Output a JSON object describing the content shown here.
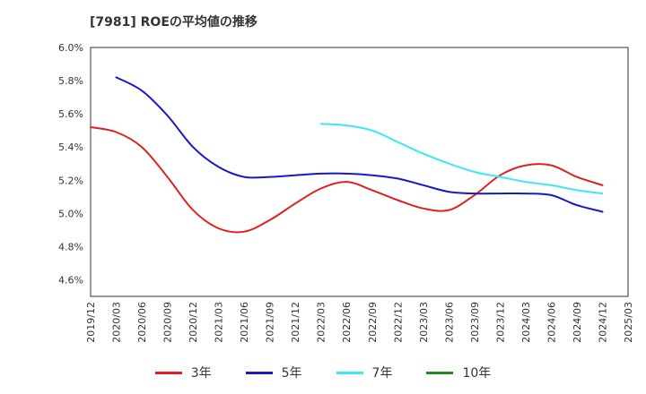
{
  "chart_data": {
    "type": "line",
    "title": "[7981]  ROEの平均値の推移",
    "xlabel": "",
    "ylabel": "",
    "ylim": [
      4.5,
      6.0
    ],
    "yticks": [
      "4.6%",
      "4.8%",
      "5.0%",
      "5.2%",
      "5.4%",
      "5.6%",
      "5.8%",
      "6.0%"
    ],
    "ytick_values": [
      4.6,
      4.8,
      5.0,
      5.2,
      5.4,
      5.6,
      5.8,
      6.0
    ],
    "categories": [
      "2019/12",
      "2020/03",
      "2020/06",
      "2020/09",
      "2020/12",
      "2021/03",
      "2021/06",
      "2021/09",
      "2021/12",
      "2022/03",
      "2022/06",
      "2022/09",
      "2022/12",
      "2023/03",
      "2023/06",
      "2023/09",
      "2023/12",
      "2024/03",
      "2024/06",
      "2024/09",
      "2024/12",
      "2025/03"
    ],
    "grid": true,
    "legend_position": "bottom",
    "series": [
      {
        "name": "3年",
        "color": "#e02020",
        "values": [
          5.52,
          5.49,
          5.4,
          5.22,
          5.02,
          4.91,
          4.89,
          4.96,
          5.06,
          5.15,
          5.19,
          5.14,
          5.08,
          5.03,
          5.02,
          5.11,
          5.23,
          5.29,
          5.29,
          5.22,
          5.17,
          null
        ]
      },
      {
        "name": "5年",
        "color": "#1818c8",
        "values": [
          null,
          5.82,
          5.74,
          5.59,
          5.4,
          5.28,
          5.22,
          5.22,
          5.23,
          5.24,
          5.24,
          5.23,
          5.21,
          5.17,
          5.13,
          5.12,
          5.12,
          5.12,
          5.11,
          5.05,
          5.01,
          null
        ]
      },
      {
        "name": "7年",
        "color": "#3ee8f0",
        "values": [
          null,
          null,
          null,
          null,
          null,
          null,
          null,
          null,
          null,
          5.54,
          5.53,
          5.5,
          5.43,
          5.36,
          5.3,
          5.25,
          5.22,
          5.19,
          5.17,
          5.14,
          5.12,
          null
        ]
      },
      {
        "name": "10年",
        "color": "#208820",
        "values": [
          null,
          null,
          null,
          null,
          null,
          null,
          null,
          null,
          null,
          null,
          null,
          null,
          null,
          null,
          null,
          null,
          null,
          null,
          null,
          null,
          null,
          null
        ]
      }
    ]
  }
}
